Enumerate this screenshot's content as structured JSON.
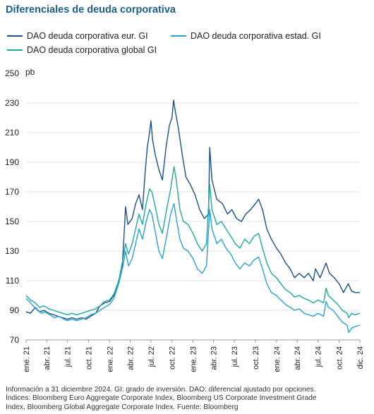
{
  "title": "Diferenciales de deuda corporativa",
  "legend": [
    {
      "label": "DAO deuda corporativa eur. GI",
      "color": "#1b4f8a"
    },
    {
      "label": "DAO deuda corporativa estad. GI",
      "color": "#2aa0d8"
    },
    {
      "label": "DAO deuda corporativa global GI",
      "color": "#1fa99e"
    }
  ],
  "footer": {
    "line1": "Información a 31 diciembre 2024. GI: grado de inversión. DAO: diferencial ajustado por opciones.",
    "line2": "Índices: Bloomberg Euro Aggregate Corporate Index, Bloomberg US Corporate Investment Grade",
    "line3": "Index, Bloomberg Global Aggregate Corporate Index. Fuente: Bloomberg"
  },
  "chart_data": {
    "type": "line",
    "unit_label": "pb",
    "ylim": [
      70,
      250
    ],
    "yticks": [
      70,
      90,
      110,
      130,
      150,
      170,
      190,
      210,
      230,
      250
    ],
    "xlim": [
      "2021-01-01",
      "2024-12-31"
    ],
    "xticks": [
      {
        "date": "2021-01-01",
        "label": "ene. 21"
      },
      {
        "date": "2021-04-01",
        "label": "abr. 21"
      },
      {
        "date": "2021-07-01",
        "label": "jul. 21"
      },
      {
        "date": "2021-10-01",
        "label": "oct. 21"
      },
      {
        "date": "2022-01-01",
        "label": "ene. 22"
      },
      {
        "date": "2022-04-01",
        "label": "abr. 22"
      },
      {
        "date": "2022-07-01",
        "label": "jul. 22"
      },
      {
        "date": "2022-10-01",
        "label": "oct. 22"
      },
      {
        "date": "2023-01-01",
        "label": "ene. 23"
      },
      {
        "date": "2023-04-01",
        "label": "abr. 23"
      },
      {
        "date": "2023-07-01",
        "label": "jul. 23"
      },
      {
        "date": "2023-10-01",
        "label": "oct. 23"
      },
      {
        "date": "2024-01-01",
        "label": "ene. 24"
      },
      {
        "date": "2024-04-01",
        "label": "abr. 24"
      },
      {
        "date": "2024-07-01",
        "label": "jul. 24"
      },
      {
        "date": "2024-10-01",
        "label": "oct. 24"
      },
      {
        "date": "2024-12-31",
        "label": "dic. 24"
      }
    ],
    "grid": "horizontal",
    "series": [
      {
        "name": "DAO deuda corporativa eur. GI",
        "color": "#1b4f8a",
        "points": [
          [
            "2021-01-01",
            89
          ],
          [
            "2021-01-20",
            88
          ],
          [
            "2021-02-10",
            92
          ],
          [
            "2021-03-01",
            89
          ],
          [
            "2021-03-20",
            90
          ],
          [
            "2021-04-10",
            88
          ],
          [
            "2021-05-01",
            87
          ],
          [
            "2021-05-20",
            86
          ],
          [
            "2021-06-10",
            85
          ],
          [
            "2021-07-01",
            84
          ],
          [
            "2021-07-20",
            85
          ],
          [
            "2021-08-10",
            84
          ],
          [
            "2021-09-01",
            85
          ],
          [
            "2021-09-20",
            84
          ],
          [
            "2021-10-10",
            86
          ],
          [
            "2021-11-01",
            88
          ],
          [
            "2021-11-20",
            93
          ],
          [
            "2021-12-10",
            95
          ],
          [
            "2022-01-01",
            96
          ],
          [
            "2022-01-20",
            100
          ],
          [
            "2022-02-10",
            110
          ],
          [
            "2022-02-25",
            118
          ],
          [
            "2022-03-07",
            145
          ],
          [
            "2022-03-12",
            160
          ],
          [
            "2022-03-22",
            148
          ],
          [
            "2022-04-10",
            152
          ],
          [
            "2022-04-25",
            162
          ],
          [
            "2022-05-10",
            168
          ],
          [
            "2022-05-25",
            158
          ],
          [
            "2022-06-05",
            182
          ],
          [
            "2022-06-15",
            200
          ],
          [
            "2022-06-25",
            210
          ],
          [
            "2022-07-01",
            218
          ],
          [
            "2022-07-08",
            205
          ],
          [
            "2022-07-20",
            195
          ],
          [
            "2022-08-05",
            185
          ],
          [
            "2022-08-20",
            178
          ],
          [
            "2022-09-05",
            200
          ],
          [
            "2022-09-20",
            215
          ],
          [
            "2022-10-01",
            220
          ],
          [
            "2022-10-08",
            232
          ],
          [
            "2022-10-15",
            225
          ],
          [
            "2022-10-30",
            212
          ],
          [
            "2022-11-15",
            195
          ],
          [
            "2022-12-01",
            180
          ],
          [
            "2022-12-20",
            175
          ],
          [
            "2023-01-10",
            168
          ],
          [
            "2023-01-30",
            158
          ],
          [
            "2023-02-20",
            152
          ],
          [
            "2023-03-10",
            155
          ],
          [
            "2023-03-15",
            200
          ],
          [
            "2023-03-25",
            178
          ],
          [
            "2023-04-15",
            165
          ],
          [
            "2023-05-10",
            162
          ],
          [
            "2023-06-01",
            155
          ],
          [
            "2023-06-20",
            158
          ],
          [
            "2023-07-10",
            152
          ],
          [
            "2023-08-01",
            150
          ],
          [
            "2023-08-20",
            155
          ],
          [
            "2023-09-10",
            158
          ],
          [
            "2023-10-01",
            162
          ],
          [
            "2023-10-15",
            165
          ],
          [
            "2023-11-01",
            158
          ],
          [
            "2023-11-20",
            145
          ],
          [
            "2023-12-10",
            138
          ],
          [
            "2024-01-01",
            132
          ],
          [
            "2024-01-20",
            128
          ],
          [
            "2024-02-10",
            122
          ],
          [
            "2024-03-01",
            118
          ],
          [
            "2024-03-20",
            112
          ],
          [
            "2024-04-10",
            115
          ],
          [
            "2024-05-01",
            112
          ],
          [
            "2024-05-20",
            115
          ],
          [
            "2024-06-10",
            110
          ],
          [
            "2024-06-20",
            118
          ],
          [
            "2024-07-10",
            112
          ],
          [
            "2024-08-05",
            122
          ],
          [
            "2024-08-20",
            115
          ],
          [
            "2024-09-10",
            112
          ],
          [
            "2024-10-01",
            108
          ],
          [
            "2024-10-20",
            102
          ],
          [
            "2024-11-10",
            108
          ],
          [
            "2024-11-25",
            103
          ],
          [
            "2024-12-10",
            102
          ],
          [
            "2024-12-31",
            102
          ]
        ]
      },
      {
        "name": "DAO deuda corporativa estad. GI",
        "color": "#2aa0d8",
        "points": [
          [
            "2021-01-01",
            98
          ],
          [
            "2021-01-15",
            96
          ],
          [
            "2021-02-01",
            93
          ],
          [
            "2021-02-20",
            90
          ],
          [
            "2021-03-10",
            88
          ],
          [
            "2021-03-25",
            89
          ],
          [
            "2021-04-15",
            87
          ],
          [
            "2021-05-05",
            85
          ],
          [
            "2021-05-25",
            86
          ],
          [
            "2021-06-15",
            84
          ],
          [
            "2021-07-01",
            83
          ],
          [
            "2021-07-20",
            84
          ],
          [
            "2021-08-10",
            83
          ],
          [
            "2021-09-01",
            84
          ],
          [
            "2021-09-20",
            85
          ],
          [
            "2021-10-10",
            87
          ],
          [
            "2021-11-01",
            88
          ],
          [
            "2021-11-20",
            90
          ],
          [
            "2021-12-10",
            92
          ],
          [
            "2022-01-01",
            94
          ],
          [
            "2022-01-20",
            98
          ],
          [
            "2022-02-10",
            108
          ],
          [
            "2022-03-01",
            120
          ],
          [
            "2022-03-12",
            130
          ],
          [
            "2022-03-25",
            120
          ],
          [
            "2022-04-10",
            125
          ],
          [
            "2022-04-25",
            135
          ],
          [
            "2022-05-10",
            145
          ],
          [
            "2022-05-25",
            138
          ],
          [
            "2022-06-10",
            150
          ],
          [
            "2022-06-25",
            158
          ],
          [
            "2022-07-05",
            155
          ],
          [
            "2022-07-20",
            143
          ],
          [
            "2022-08-05",
            130
          ],
          [
            "2022-08-20",
            125
          ],
          [
            "2022-09-10",
            142
          ],
          [
            "2022-09-25",
            155
          ],
          [
            "2022-10-10",
            162
          ],
          [
            "2022-10-20",
            152
          ],
          [
            "2022-11-05",
            138
          ],
          [
            "2022-11-20",
            132
          ],
          [
            "2022-12-10",
            130
          ],
          [
            "2023-01-01",
            125
          ],
          [
            "2023-01-20",
            118
          ],
          [
            "2023-02-10",
            115
          ],
          [
            "2023-03-01",
            120
          ],
          [
            "2023-03-15",
            158
          ],
          [
            "2023-03-25",
            145
          ],
          [
            "2023-04-15",
            135
          ],
          [
            "2023-05-05",
            138
          ],
          [
            "2023-05-25",
            132
          ],
          [
            "2023-06-15",
            128
          ],
          [
            "2023-07-05",
            122
          ],
          [
            "2023-07-25",
            118
          ],
          [
            "2023-08-15",
            122
          ],
          [
            "2023-09-05",
            120
          ],
          [
            "2023-09-25",
            124
          ],
          [
            "2023-10-15",
            126
          ],
          [
            "2023-11-01",
            118
          ],
          [
            "2023-11-20",
            108
          ],
          [
            "2023-12-10",
            102
          ],
          [
            "2024-01-01",
            100
          ],
          [
            "2024-01-20",
            97
          ],
          [
            "2024-02-10",
            94
          ],
          [
            "2024-03-01",
            92
          ],
          [
            "2024-03-20",
            90
          ],
          [
            "2024-04-10",
            91
          ],
          [
            "2024-05-01",
            88
          ],
          [
            "2024-05-20",
            87
          ],
          [
            "2024-06-10",
            86
          ],
          [
            "2024-07-01",
            88
          ],
          [
            "2024-07-25",
            86
          ],
          [
            "2024-08-05",
            96
          ],
          [
            "2024-08-15",
            92
          ],
          [
            "2024-09-05",
            90
          ],
          [
            "2024-09-25",
            86
          ],
          [
            "2024-10-15",
            82
          ],
          [
            "2024-11-05",
            80
          ],
          [
            "2024-11-12",
            75
          ],
          [
            "2024-11-25",
            78
          ],
          [
            "2024-12-10",
            79
          ],
          [
            "2024-12-31",
            80
          ]
        ]
      },
      {
        "name": "DAO deuda corporativa global GI",
        "color": "#1fa99e",
        "points": [
          [
            "2021-01-01",
            100
          ],
          [
            "2021-01-20",
            97
          ],
          [
            "2021-02-10",
            95
          ],
          [
            "2021-03-01",
            92
          ],
          [
            "2021-03-20",
            93
          ],
          [
            "2021-04-10",
            91
          ],
          [
            "2021-05-01",
            90
          ],
          [
            "2021-05-20",
            89
          ],
          [
            "2021-06-10",
            88
          ],
          [
            "2021-07-01",
            87
          ],
          [
            "2021-07-20",
            88
          ],
          [
            "2021-08-10",
            87
          ],
          [
            "2021-09-01",
            88
          ],
          [
            "2021-09-20",
            89
          ],
          [
            "2021-10-10",
            90
          ],
          [
            "2021-11-01",
            91
          ],
          [
            "2021-11-20",
            93
          ],
          [
            "2021-12-10",
            96
          ],
          [
            "2022-01-01",
            97
          ],
          [
            "2022-01-20",
            101
          ],
          [
            "2022-02-10",
            110
          ],
          [
            "2022-03-01",
            125
          ],
          [
            "2022-03-12",
            135
          ],
          [
            "2022-03-25",
            128
          ],
          [
            "2022-04-10",
            135
          ],
          [
            "2022-04-25",
            145
          ],
          [
            "2022-05-10",
            155
          ],
          [
            "2022-05-25",
            148
          ],
          [
            "2022-06-10",
            162
          ],
          [
            "2022-06-25",
            172
          ],
          [
            "2022-07-05",
            170
          ],
          [
            "2022-07-20",
            160
          ],
          [
            "2022-08-05",
            148
          ],
          [
            "2022-08-20",
            142
          ],
          [
            "2022-09-10",
            160
          ],
          [
            "2022-09-25",
            172
          ],
          [
            "2022-10-10",
            187
          ],
          [
            "2022-10-20",
            178
          ],
          [
            "2022-11-05",
            158
          ],
          [
            "2022-11-20",
            150
          ],
          [
            "2022-12-10",
            148
          ],
          [
            "2023-01-01",
            142
          ],
          [
            "2023-01-20",
            135
          ],
          [
            "2023-02-10",
            130
          ],
          [
            "2023-03-01",
            135
          ],
          [
            "2023-03-15",
            175
          ],
          [
            "2023-03-25",
            158
          ],
          [
            "2023-04-15",
            148
          ],
          [
            "2023-05-05",
            150
          ],
          [
            "2023-05-25",
            145
          ],
          [
            "2023-06-15",
            140
          ],
          [
            "2023-07-05",
            135
          ],
          [
            "2023-07-25",
            132
          ],
          [
            "2023-08-15",
            138
          ],
          [
            "2023-09-05",
            135
          ],
          [
            "2023-09-25",
            140
          ],
          [
            "2023-10-15",
            142
          ],
          [
            "2023-11-01",
            132
          ],
          [
            "2023-11-20",
            122
          ],
          [
            "2023-12-10",
            115
          ],
          [
            "2024-01-01",
            112
          ],
          [
            "2024-01-20",
            108
          ],
          [
            "2024-02-10",
            104
          ],
          [
            "2024-03-01",
            102
          ],
          [
            "2024-03-20",
            99
          ],
          [
            "2024-04-10",
            100
          ],
          [
            "2024-05-01",
            98
          ],
          [
            "2024-05-20",
            97
          ],
          [
            "2024-06-10",
            95
          ],
          [
            "2024-07-01",
            97
          ],
          [
            "2024-07-25",
            95
          ],
          [
            "2024-08-05",
            105
          ],
          [
            "2024-08-15",
            100
          ],
          [
            "2024-09-05",
            97
          ],
          [
            "2024-09-25",
            94
          ],
          [
            "2024-10-15",
            90
          ],
          [
            "2024-11-05",
            88
          ],
          [
            "2024-11-12",
            85
          ],
          [
            "2024-11-25",
            88
          ],
          [
            "2024-12-10",
            87
          ],
          [
            "2024-12-31",
            88
          ]
        ]
      }
    ]
  }
}
